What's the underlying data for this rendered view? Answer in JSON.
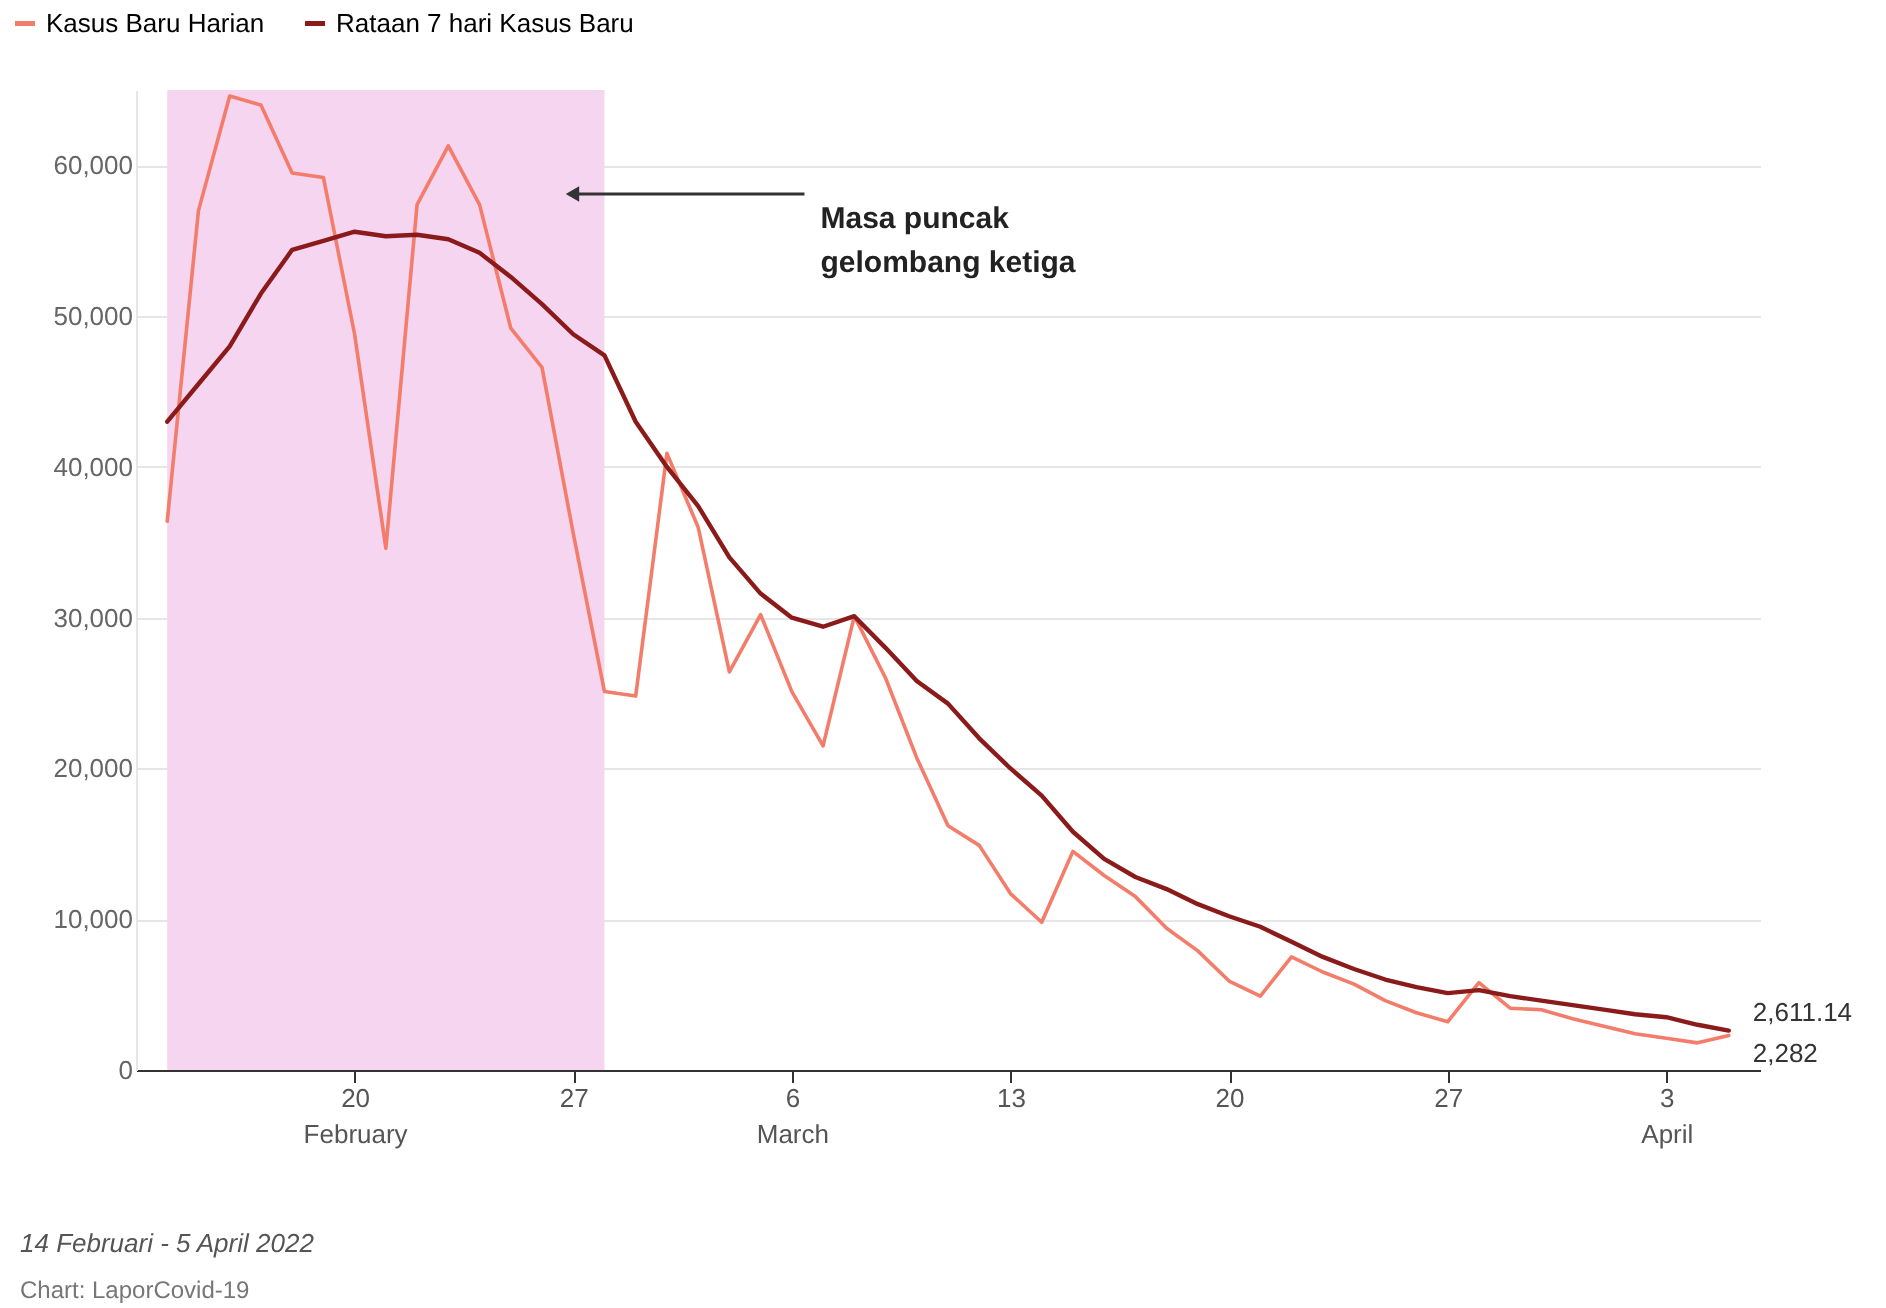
{
  "chart_data": {
    "type": "line",
    "x": [
      "2022-02-14",
      "2022-02-15",
      "2022-02-16",
      "2022-02-17",
      "2022-02-18",
      "2022-02-19",
      "2022-02-20",
      "2022-02-21",
      "2022-02-22",
      "2022-02-23",
      "2022-02-24",
      "2022-02-25",
      "2022-02-26",
      "2022-02-27",
      "2022-02-28",
      "2022-03-01",
      "2022-03-02",
      "2022-03-03",
      "2022-03-04",
      "2022-03-05",
      "2022-03-06",
      "2022-03-07",
      "2022-03-08",
      "2022-03-09",
      "2022-03-10",
      "2022-03-11",
      "2022-03-12",
      "2022-03-13",
      "2022-03-14",
      "2022-03-15",
      "2022-03-16",
      "2022-03-17",
      "2022-03-18",
      "2022-03-19",
      "2022-03-20",
      "2022-03-21",
      "2022-03-22",
      "2022-03-23",
      "2022-03-24",
      "2022-03-25",
      "2022-03-26",
      "2022-03-27",
      "2022-03-28",
      "2022-03-29",
      "2022-03-30",
      "2022-03-31",
      "2022-04-01",
      "2022-04-02",
      "2022-04-03",
      "2022-04-04",
      "2022-04-05"
    ],
    "series": [
      {
        "name": "Kasus Baru Harian",
        "color": "#f47c6a",
        "values": [
          36400,
          57000,
          64600,
          64000,
          59500,
          59200,
          48800,
          34600,
          57400,
          61300,
          57400,
          49200,
          46600,
          35600,
          25100,
          24800,
          40900,
          36000,
          26400,
          30200,
          25100,
          21500,
          30100,
          26000,
          20700,
          16200,
          14900,
          11700,
          9800,
          14500,
          12900,
          11500,
          9400,
          7900,
          5900,
          4900,
          7500,
          6500,
          5700,
          4600,
          3800,
          3200,
          5800,
          4100,
          4000,
          3400,
          2900,
          2400,
          2100,
          1800,
          2282
        ],
        "value_labels": [
          null,
          null,
          null,
          null,
          null,
          null,
          null,
          null,
          null,
          null,
          null,
          null,
          null,
          null,
          null,
          null,
          null,
          null,
          null,
          null,
          null,
          null,
          null,
          null,
          null,
          null,
          null,
          null,
          null,
          null,
          null,
          null,
          null,
          null,
          null,
          null,
          null,
          null,
          null,
          null,
          null,
          null,
          null,
          null,
          null,
          null,
          null,
          null,
          null,
          null,
          "2,282"
        ]
      },
      {
        "name": "Rataan 7 hari Kasus Baru",
        "color": "#8b1a1a",
        "values": [
          43000,
          45500,
          48000,
          51500,
          54400,
          55000,
          55600,
          55300,
          55400,
          55100,
          54200,
          52600,
          50800,
          48800,
          47400,
          43000,
          40000,
          37400,
          34000,
          31600,
          30000,
          29400,
          30100,
          28000,
          25800,
          24300,
          22000,
          20000,
          18200,
          15800,
          14000,
          12800,
          12000,
          11000,
          10200,
          9500,
          8500,
          7500,
          6700,
          6000,
          5500,
          5100,
          5300,
          4900,
          4600,
          4300,
          4000,
          3700,
          3500,
          3000,
          2611.14
        ],
        "value_labels": [
          null,
          null,
          null,
          null,
          null,
          null,
          null,
          null,
          null,
          null,
          null,
          null,
          null,
          null,
          null,
          null,
          null,
          null,
          null,
          null,
          null,
          null,
          null,
          null,
          null,
          null,
          null,
          null,
          null,
          null,
          null,
          null,
          null,
          null,
          null,
          null,
          null,
          null,
          null,
          null,
          null,
          null,
          null,
          null,
          null,
          null,
          null,
          null,
          null,
          null,
          "2,611.14"
        ]
      }
    ],
    "xlim": [
      "2022-02-13",
      "2022-04-06"
    ],
    "xticks": [
      {
        "value": "2022-02-20",
        "label": "20\nFebruary"
      },
      {
        "value": "2022-02-27",
        "label": "27"
      },
      {
        "value": "2022-03-06",
        "label": "6\nMarch"
      },
      {
        "value": "2022-03-13",
        "label": "13"
      },
      {
        "value": "2022-03-20",
        "label": "20"
      },
      {
        "value": "2022-03-27",
        "label": "27"
      },
      {
        "value": "2022-04-03",
        "label": "3\nApril"
      }
    ],
    "ylim": [
      0,
      65000
    ],
    "yticks": [
      0,
      {
        "value": 10000,
        "label": "10,000"
      },
      {
        "value": 20000,
        "label": "20,000"
      },
      {
        "value": 30000,
        "label": "30,000"
      },
      {
        "value": 40000,
        "label": "40,000"
      },
      {
        "value": 50000,
        "label": "50,000"
      },
      {
        "value": 60000,
        "label": "60,000"
      }
    ],
    "grid": "y",
    "legend": "top left",
    "bands": [
      {
        "axis": "x",
        "from": "2022-02-14",
        "to": "2022-02-28",
        "label": "Masa puncak\ngelombang ketiga",
        "color": "#f6d5f0"
      }
    ],
    "annotations": [
      "14 Februari - 5 April 2022",
      "Chart: LaporCovid-19"
    ]
  }
}
